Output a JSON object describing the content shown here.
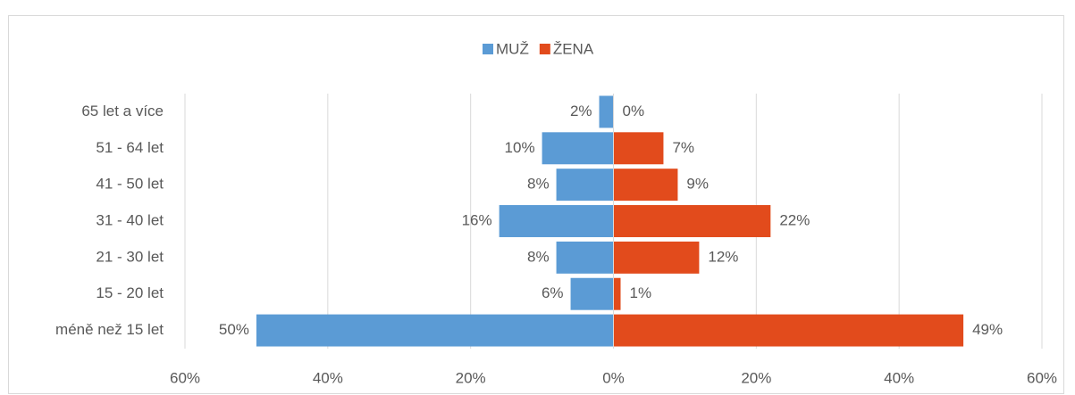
{
  "chart_data": {
    "type": "bar",
    "orientation": "horizontal",
    "categories": [
      "65 let a více",
      "51 - 64 let",
      "41 - 50 let",
      "31 - 40 let",
      "21 - 30 let",
      "15 - 20 let",
      "méně než 15 let"
    ],
    "series": [
      {
        "name": "MUŽ",
        "color": "#5b9bd5",
        "values": [
          -2,
          -10,
          -8,
          -16,
          -8,
          -6,
          -50
        ],
        "value_labels": [
          "2%",
          "10%",
          "8%",
          "16%",
          "8%",
          "6%",
          "50%"
        ]
      },
      {
        "name": "ŽENA",
        "color": "#e24b1c",
        "values": [
          0,
          7,
          9,
          22,
          12,
          1,
          49
        ],
        "value_labels": [
          "0%",
          "7%",
          "9%",
          "22%",
          "12%",
          "1%",
          "49%"
        ]
      }
    ],
    "xlim": [
      -60,
      60
    ],
    "xticks": [
      {
        "value": -60,
        "label": "60%"
      },
      {
        "value": -40,
        "label": "40%"
      },
      {
        "value": -20,
        "label": "20%"
      },
      {
        "value": 0,
        "label": "0%"
      },
      {
        "value": 20,
        "label": "20%"
      },
      {
        "value": 40,
        "label": "40%"
      },
      {
        "value": 60,
        "label": "60%"
      }
    ],
    "grid": true,
    "legend": "top"
  }
}
